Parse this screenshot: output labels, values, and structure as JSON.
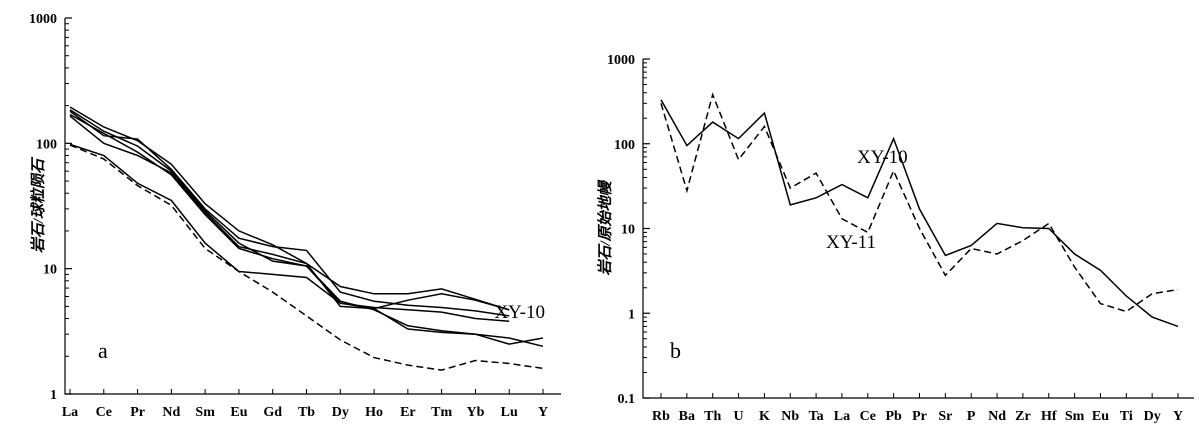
{
  "chart_data": [
    {
      "type": "line",
      "panel_label": "a",
      "ylabel": "岩石/球粒陨石",
      "yscale": "log",
      "ylim": [
        1,
        1000
      ],
      "y_ticks": [
        "1",
        "10",
        "100",
        "1000"
      ],
      "categories": [
        "La",
        "Ce",
        "Pr",
        "Nd",
        "Sm",
        "Eu",
        "Gd",
        "Tb",
        "Dy",
        "Ho",
        "Er",
        "Tm",
        "Yb",
        "Lu",
        "Y"
      ],
      "series": [
        {
          "style": "solid",
          "values": [
            195,
            135,
            105,
            68,
            33,
            20,
            15.5,
            11,
            7.2,
            6.3,
            6.3,
            6.9,
            5.7,
            4.7,
            null
          ]
        },
        {
          "style": "solid",
          "values": [
            180,
            115,
            108,
            62,
            30,
            17.5,
            15,
            14,
            6.5,
            5.5,
            5.1,
            4.9,
            4.6,
            4.2,
            null
          ]
        },
        {
          "style": "solid",
          "values": [
            165,
            100,
            80,
            58,
            28,
            15,
            13,
            11,
            5.0,
            4.8,
            5.6,
            6.3,
            5.6,
            4.7,
            null
          ]
        },
        {
          "style": "solid",
          "values": [
            170,
            120,
            85,
            56,
            27,
            14.5,
            12,
            10.5,
            5.3,
            4.9,
            4.7,
            4.5,
            4.0,
            3.8,
            null
          ]
        },
        {
          "style": "solid",
          "values": [
            185,
            125,
            95,
            60,
            29,
            16,
            11.5,
            10.5,
            5.5,
            4.7,
            3.5,
            3.2,
            3.0,
            2.5,
            2.8
          ]
        },
        {
          "style": "solid",
          "values": [
            98,
            80,
            48,
            35,
            16,
            9.5,
            9,
            8.5,
            5.3,
            4.8,
            3.3,
            3.1,
            3.0,
            2.8,
            2.4
          ]
        },
        {
          "style": "dashed",
          "name": "XY-10",
          "values": [
            97,
            75,
            46,
            32,
            14.5,
            9.5,
            6.5,
            4.2,
            2.7,
            1.95,
            1.7,
            1.55,
            1.85,
            1.75,
            1.6
          ]
        }
      ],
      "annotations": [
        {
          "text": "XY-10"
        }
      ]
    },
    {
      "type": "line",
      "panel_label": "b",
      "ylabel": "岩石/原始地幔",
      "yscale": "log",
      "ylim": [
        0.1,
        1000
      ],
      "y_ticks": [
        "0.1",
        "1",
        "10",
        "100",
        "1000"
      ],
      "categories": [
        "Rb",
        "Ba",
        "Th",
        "U",
        "K",
        "Nb",
        "Ta",
        "La",
        "Ce",
        "Pb",
        "Pr",
        "Sr",
        "P",
        "Nd",
        "Zr",
        "Hf",
        "Sm",
        "Eu",
        "Ti",
        "Dy",
        "Y"
      ],
      "series": [
        {
          "style": "solid",
          "name": "XY-10",
          "values": [
            330,
            95,
            180,
            115,
            230,
            19,
            23,
            33,
            23,
            115,
            17,
            4.8,
            6.3,
            11.5,
            10.2,
            10.0,
            5.0,
            3.2,
            1.6,
            0.9,
            0.7
          ]
        },
        {
          "style": "dashed",
          "name": "XY-11",
          "values": [
            300,
            28,
            380,
            65,
            160,
            30,
            45,
            13,
            9,
            48,
            10,
            2.8,
            5.8,
            5.0,
            7.2,
            11.5,
            3.5,
            1.3,
            1.05,
            1.7,
            1.9
          ]
        }
      ],
      "annotations": [
        {
          "text": "XY-10"
        },
        {
          "text": "XY-11"
        }
      ]
    }
  ]
}
